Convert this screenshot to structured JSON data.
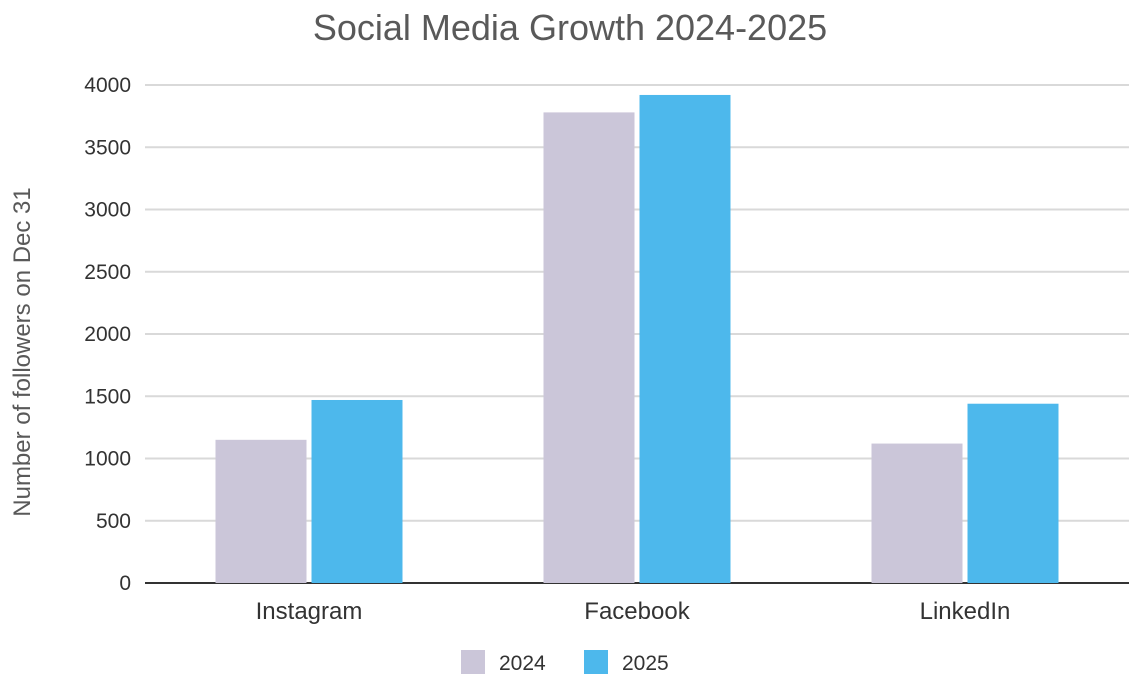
{
  "chart_data": {
    "type": "bar",
    "title": "Social Media Growth 2024-2025",
    "xlabel": "",
    "ylabel": "Number of followers on Dec 31",
    "categories": [
      "Instagram",
      "Facebook",
      "LinkedIn"
    ],
    "series": [
      {
        "name": "2024",
        "values": [
          1150,
          3780,
          1120
        ],
        "color": "#cbc6d9"
      },
      {
        "name": "2025",
        "values": [
          1470,
          3920,
          1440
        ],
        "color": "#4db8ec"
      }
    ],
    "ylim": [
      0,
      4000
    ],
    "yticks": [
      0,
      500,
      1000,
      1500,
      2000,
      2500,
      3000,
      3500,
      4000
    ],
    "ytick_labels": [
      "0",
      "500",
      "1000",
      "1500",
      "2000",
      "2500",
      "3000",
      "3500",
      "4000"
    ],
    "grid": true,
    "legend_position": "bottom-center"
  }
}
